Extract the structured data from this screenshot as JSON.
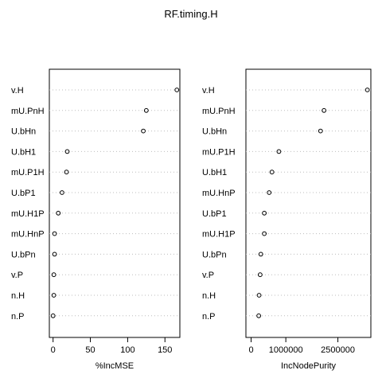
{
  "page": {
    "title": "RF.timing.H"
  },
  "chart_data": [
    {
      "type": "scatter",
      "panel": "left",
      "xlabel": "%IncMSE",
      "categories": [
        "v.H",
        "mU.PnH",
        "U.bHn",
        "U.bH1",
        "mU.P1H",
        "U.bP1",
        "mU.H1P",
        "mU.HnP",
        "U.bPn",
        "v.P",
        "n.H",
        "n.P"
      ],
      "values": [
        166,
        125,
        121,
        19,
        18,
        12,
        7,
        2,
        2,
        1,
        1,
        0
      ],
      "xlim": [
        -5,
        170
      ],
      "xticks": [
        0,
        50,
        100,
        150
      ],
      "grid": "dotted horizontal guide lines"
    },
    {
      "type": "scatter",
      "panel": "right",
      "xlabel": "IncNodePurity",
      "categories": [
        "v.H",
        "mU.PnH",
        "U.bHn",
        "mU.P1H",
        "U.bH1",
        "mU.HnP",
        "U.bP1",
        "mU.H1P",
        "U.bPn",
        "v.P",
        "n.H",
        "n.P"
      ],
      "values": [
        3350000,
        2100000,
        2000000,
        800000,
        600000,
        520000,
        380000,
        380000,
        280000,
        260000,
        230000,
        220000
      ],
      "xlim": [
        -150000,
        3450000
      ],
      "xticks": [
        0,
        1000000,
        2500000
      ],
      "xtick_labels": [
        "0",
        "1000000",
        "2500000"
      ],
      "grid": "dotted horizontal guide lines"
    }
  ]
}
